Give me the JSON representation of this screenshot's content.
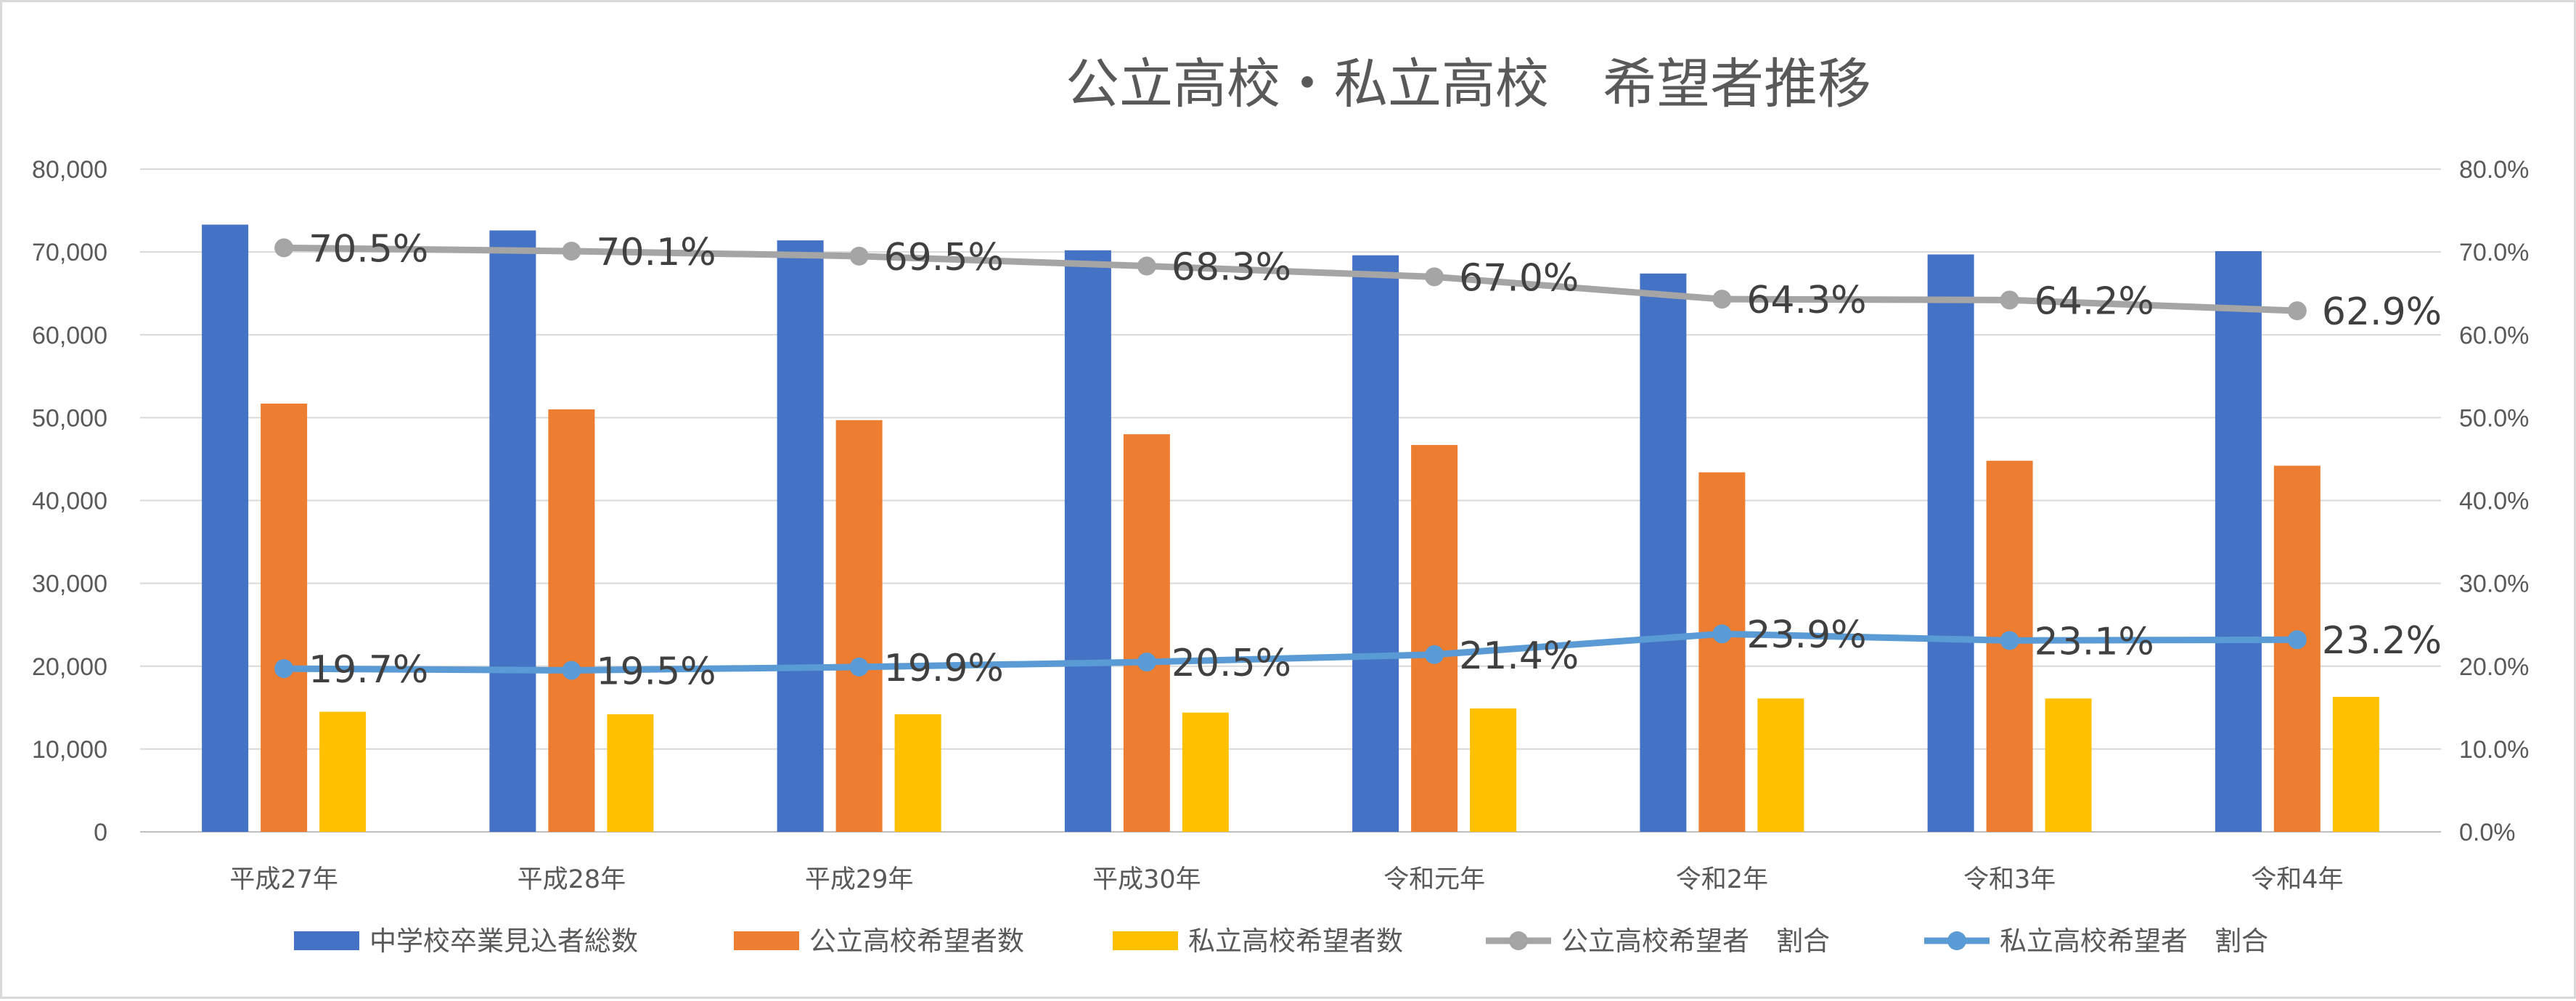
{
  "chart_data": {
    "type": "bar",
    "title": "公立高校・私立高校　希望者推移",
    "categories": [
      "平成27年",
      "平成28年",
      "平成29年",
      "平成30年",
      "令和元年",
      "令和2年",
      "令和3年",
      "令和4年"
    ],
    "y_left": {
      "min": 0,
      "max": 80000,
      "ticks": [
        "0",
        "10,000",
        "20,000",
        "30,000",
        "40,000",
        "50,000",
        "60,000",
        "70,000",
        "80,000"
      ]
    },
    "y_right": {
      "min": 0,
      "max": 0.8,
      "ticks": [
        "0.0%",
        "10.0%",
        "20.0%",
        "30.0%",
        "40.0%",
        "50.0%",
        "60.0%",
        "70.0%",
        "80.0%"
      ]
    },
    "grid": true,
    "legend_position": "bottom",
    "series": [
      {
        "name": "中学校卒業見込者総数",
        "kind": "bar",
        "axis": "left",
        "color": "#4472C4",
        "values": [
          73300,
          72600,
          71400,
          70200,
          69600,
          67400,
          69700,
          70100
        ]
      },
      {
        "name": "公立高校希望者数",
        "kind": "bar",
        "axis": "left",
        "color": "#ED7D31",
        "values": [
          51700,
          51000,
          49700,
          48000,
          46700,
          43400,
          44800,
          44200
        ]
      },
      {
        "name": "私立高校希望者数",
        "kind": "bar",
        "axis": "left",
        "color": "#FFC000",
        "values": [
          14500,
          14200,
          14200,
          14400,
          14900,
          16100,
          16100,
          16300
        ]
      },
      {
        "name": "公立高校希望者　割合",
        "kind": "line",
        "axis": "right",
        "color": "#A5A5A5",
        "values": [
          0.705,
          0.701,
          0.695,
          0.683,
          0.67,
          0.643,
          0.642,
          0.629
        ],
        "labels": [
          "70.5%",
          "70.1%",
          "69.5%",
          "68.3%",
          "67.0%",
          "64.3%",
          "64.2%",
          "62.9%"
        ]
      },
      {
        "name": "私立高校希望者　割合",
        "kind": "line",
        "axis": "right",
        "color": "#5B9BD5",
        "values": [
          0.197,
          0.195,
          0.199,
          0.205,
          0.214,
          0.239,
          0.231,
          0.232
        ],
        "labels": [
          "19.7%",
          "19.5%",
          "19.9%",
          "20.5%",
          "21.4%",
          "23.9%",
          "23.1%",
          "23.2%"
        ]
      }
    ]
  }
}
